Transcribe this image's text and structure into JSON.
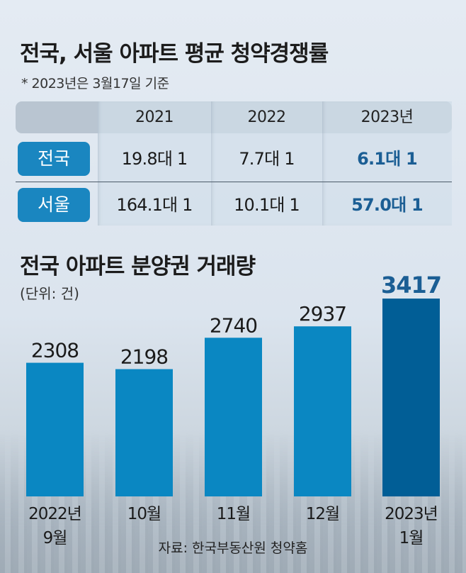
{
  "title": "전국, 서울 아파트 평균 청약경쟁률",
  "subtitle": "* 2023년은 3월17일 기준",
  "table": {
    "headers": [
      "2021",
      "2022",
      "2023년"
    ],
    "rows": [
      {
        "label": "전국",
        "values": [
          "19.8대 1",
          "7.7대 1",
          "6.1대 1"
        ]
      },
      {
        "label": "서울",
        "values": [
          "164.1대 1",
          "10.1대 1",
          "57.0대 1"
        ]
      }
    ]
  },
  "chart_data": {
    "type": "bar",
    "title": "전국 아파트 분양권 거래량",
    "unit_label": "(단위: 건)",
    "categories": [
      "2022년 9월",
      "10월",
      "11월",
      "12월",
      "2023년 1월"
    ],
    "category_lines": [
      [
        "2022년",
        "9월"
      ],
      [
        "10월"
      ],
      [
        "11월"
      ],
      [
        "12월"
      ],
      [
        "2023년",
        "1월"
      ]
    ],
    "values": [
      2308,
      2198,
      2740,
      2937,
      3417
    ],
    "value_labels": [
      "2308",
      "2198",
      "2740",
      "2937",
      "3417"
    ],
    "ylim": [
      0,
      3417
    ],
    "grid": false,
    "colors": {
      "bar": "#0a87c2",
      "highlight_bar": "#015e96",
      "highlight_label": "#1b5e94"
    },
    "highlight_index": 4
  },
  "source": "자료: 한국부동산원 청약홈",
  "colors": {
    "badge": "#1a86c0",
    "highlight_text": "#1b5e94",
    "header": "#b9c5d1"
  }
}
